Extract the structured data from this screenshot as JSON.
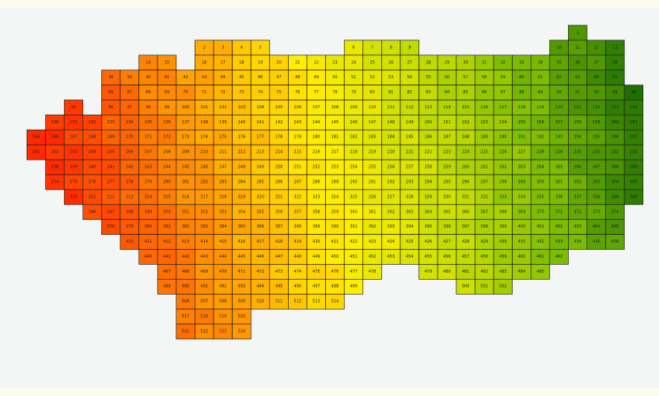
{
  "map": {
    "colors": {
      "low": "#ff2a00",
      "mid1": "#ff9d00",
      "mid2": "#ffee00",
      "mid3": "#c9df00",
      "mid4": "#7cbc00",
      "high": "#1f6f00"
    },
    "rows": [
      {
        "row": 0,
        "ranges": [
          [
            29,
            29
          ]
        ],
        "start": 1
      },
      {
        "row": 1,
        "ranges": [
          [
            9,
            12
          ],
          [
            17,
            20
          ],
          [
            28,
            31
          ]
        ],
        "start": 2
      },
      {
        "row": 2,
        "ranges": [
          [
            6,
            7
          ],
          [
            9,
            30
          ],
          [
            27,
            31
          ]
        ],
        "start": 14
      },
      {
        "row": 3,
        "ranges": [
          [
            4,
            31
          ]
        ],
        "start": 38
      },
      {
        "row": 4,
        "ranges": [
          [
            4,
            32
          ]
        ],
        "start": 66
      },
      {
        "row": 5,
        "ranges": [
          [
            2,
            2
          ],
          [
            4,
            32
          ]
        ],
        "start": 95
      },
      {
        "row": 6,
        "ranges": [
          [
            1,
            32
          ]
        ],
        "start": 130
      },
      {
        "row": 7,
        "ranges": [
          [
            0,
            32
          ]
        ],
        "start": 165
      },
      {
        "row": 8,
        "ranges": [
          [
            0,
            32
          ]
        ],
        "start": 201
      },
      {
        "row": 9,
        "ranges": [
          [
            1,
            32
          ]
        ],
        "start": 238
      },
      {
        "row": 10,
        "ranges": [
          [
            1,
            32
          ]
        ],
        "start": 274
      },
      {
        "row": 11,
        "ranges": [
          [
            2,
            32
          ]
        ],
        "start": 310
      },
      {
        "row": 12,
        "ranges": [
          [
            3,
            31
          ]
        ],
        "start": 346
      },
      {
        "row": 13,
        "ranges": [
          [
            4,
            31
          ]
        ],
        "start": 378
      },
      {
        "row": 14,
        "ranges": [
          [
            5,
            31
          ]
        ],
        "start": 410
      },
      {
        "row": 15,
        "ranges": [
          [
            6,
            28
          ]
        ],
        "start": 440
      },
      {
        "row": 16,
        "ranges": [
          [
            7,
            18
          ],
          [
            21,
            27
          ]
        ],
        "start": 467
      },
      {
        "row": 17,
        "ranges": [
          [
            7,
            17
          ],
          [
            23,
            25
          ]
        ],
        "start": 489
      },
      {
        "row": 18,
        "ranges": [
          [
            8,
            16
          ]
        ],
        "start": 506
      },
      {
        "row": 19,
        "ranges": [
          [
            8,
            11
          ]
        ],
        "start": 517
      },
      {
        "row": 20,
        "ranges": [
          [
            8,
            11
          ]
        ],
        "start": 521
      }
    ]
  }
}
